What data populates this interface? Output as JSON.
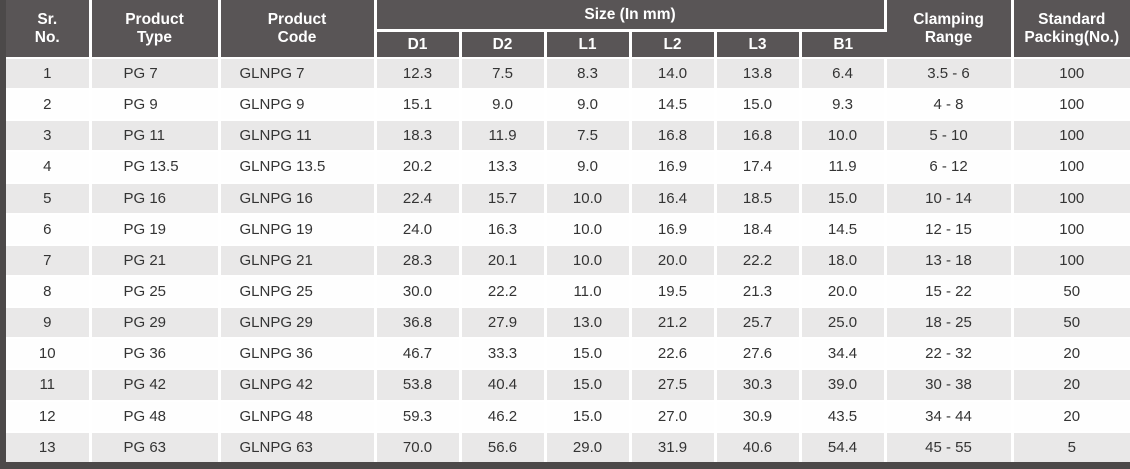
{
  "colors": {
    "header_bg": "#595556",
    "header_text": "#ffffff",
    "stripe_bg": "#e9e8e8",
    "body_text": "#343434",
    "frame_edge": "#4c4949"
  },
  "table": {
    "header": {
      "sr_no": "Sr.\nNo.",
      "product_type": "Product\nType",
      "product_code": "Product\nCode",
      "size_group": "Size (In mm)",
      "size_columns": [
        "D1",
        "D2",
        "L1",
        "L2",
        "L3",
        "B1"
      ],
      "clamping_range": "Clamping\nRange",
      "standard_packing": "Standard\nPacking(No.)"
    },
    "rows": [
      {
        "sr": "1",
        "type": "PG 7",
        "code": "GLNPG 7",
        "d1": "12.3",
        "d2": "7.5",
        "l1": "8.3",
        "l2": "14.0",
        "l3": "13.8",
        "b1": "6.4",
        "clamping": "3.5 - 6",
        "packing": "100"
      },
      {
        "sr": "2",
        "type": "PG 9",
        "code": "GLNPG 9",
        "d1": "15.1",
        "d2": "9.0",
        "l1": "9.0",
        "l2": "14.5",
        "l3": "15.0",
        "b1": "9.3",
        "clamping": "4 - 8",
        "packing": "100"
      },
      {
        "sr": "3",
        "type": "PG 11",
        "code": "GLNPG 11",
        "d1": "18.3",
        "d2": "11.9",
        "l1": "7.5",
        "l2": "16.8",
        "l3": "16.8",
        "b1": "10.0",
        "clamping": "5 - 10",
        "packing": "100"
      },
      {
        "sr": "4",
        "type": "PG 13.5",
        "code": "GLNPG 13.5",
        "d1": "20.2",
        "d2": "13.3",
        "l1": "9.0",
        "l2": "16.9",
        "l3": "17.4",
        "b1": "11.9",
        "clamping": "6 - 12",
        "packing": "100"
      },
      {
        "sr": "5",
        "type": "PG 16",
        "code": "GLNPG 16",
        "d1": "22.4",
        "d2": "15.7",
        "l1": "10.0",
        "l2": "16.4",
        "l3": "18.5",
        "b1": "15.0",
        "clamping": "10 - 14",
        "packing": "100"
      },
      {
        "sr": "6",
        "type": "PG 19",
        "code": "GLNPG 19",
        "d1": "24.0",
        "d2": "16.3",
        "l1": "10.0",
        "l2": "16.9",
        "l3": "18.4",
        "b1": "14.5",
        "clamping": "12 - 15",
        "packing": "100"
      },
      {
        "sr": "7",
        "type": "PG 21",
        "code": "GLNPG 21",
        "d1": "28.3",
        "d2": "20.1",
        "l1": "10.0",
        "l2": "20.0",
        "l3": "22.2",
        "b1": "18.0",
        "clamping": "13 - 18",
        "packing": "100"
      },
      {
        "sr": "8",
        "type": "PG 25",
        "code": "GLNPG 25",
        "d1": "30.0",
        "d2": "22.2",
        "l1": "11.0",
        "l2": "19.5",
        "l3": "21.3",
        "b1": "20.0",
        "clamping": "15 - 22",
        "packing": "50"
      },
      {
        "sr": "9",
        "type": "PG 29",
        "code": "GLNPG 29",
        "d1": "36.8",
        "d2": "27.9",
        "l1": "13.0",
        "l2": "21.2",
        "l3": "25.7",
        "b1": "25.0",
        "clamping": "18 - 25",
        "packing": "50"
      },
      {
        "sr": "10",
        "type": "PG 36",
        "code": "GLNPG 36",
        "d1": "46.7",
        "d2": "33.3",
        "l1": "15.0",
        "l2": "22.6",
        "l3": "27.6",
        "b1": "34.4",
        "clamping": "22 - 32",
        "packing": "20"
      },
      {
        "sr": "11",
        "type": "PG 42",
        "code": "GLNPG 42",
        "d1": "53.8",
        "d2": "40.4",
        "l1": "15.0",
        "l2": "27.5",
        "l3": "30.3",
        "b1": "39.0",
        "clamping": "30 - 38",
        "packing": "20"
      },
      {
        "sr": "12",
        "type": "PG 48",
        "code": "GLNPG 48",
        "d1": "59.3",
        "d2": "46.2",
        "l1": "15.0",
        "l2": "27.0",
        "l3": "30.9",
        "b1": "43.5",
        "clamping": "34 - 44",
        "packing": "20"
      },
      {
        "sr": "13",
        "type": "PG 63",
        "code": "GLNPG 63",
        "d1": "70.0",
        "d2": "56.6",
        "l1": "29.0",
        "l2": "31.9",
        "l3": "40.6",
        "b1": "54.4",
        "clamping": "45 - 55",
        "packing": "5"
      }
    ]
  }
}
